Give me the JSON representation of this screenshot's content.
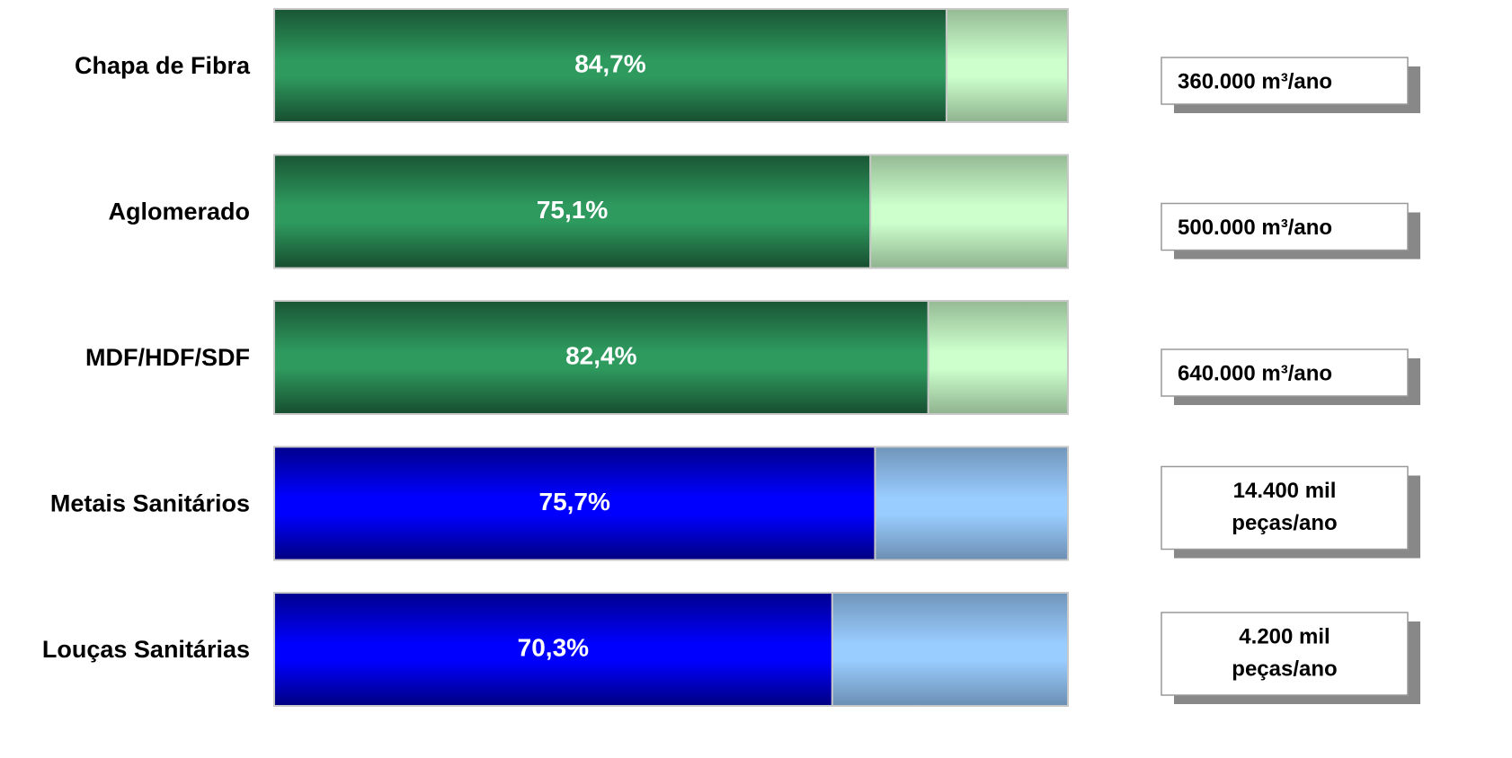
{
  "chart_data": {
    "type": "bar",
    "categories": [
      "Chapa de Fibra",
      "Aglomerado",
      "MDF/HDF/SDF",
      "Metais Sanitários",
      "Louças Sanitárias"
    ],
    "values": [
      84.7,
      75.1,
      82.4,
      75.7,
      70.3
    ],
    "value_labels": [
      "84,7%",
      "75,1%",
      "82,4%",
      "75,7%",
      "70,3%"
    ],
    "colors": [
      "#2e9a5e",
      "#2e9a5e",
      "#2e9a5e",
      "#0000ff",
      "#0000ff"
    ],
    "remainder_colors": [
      "#ccffcc",
      "#ccffcc",
      "#ccffcc",
      "#99ccff",
      "#99ccff"
    ],
    "xlim": [
      0,
      100
    ],
    "capacities": [
      [
        "360.000 m³/ano"
      ],
      [
        "500.000 m³/ano"
      ],
      [
        "640.000 m³/ano"
      ],
      [
        "14.400 mil",
        "peças/ano"
      ],
      [
        "4.200 mil",
        "peças/ano"
      ]
    ]
  }
}
